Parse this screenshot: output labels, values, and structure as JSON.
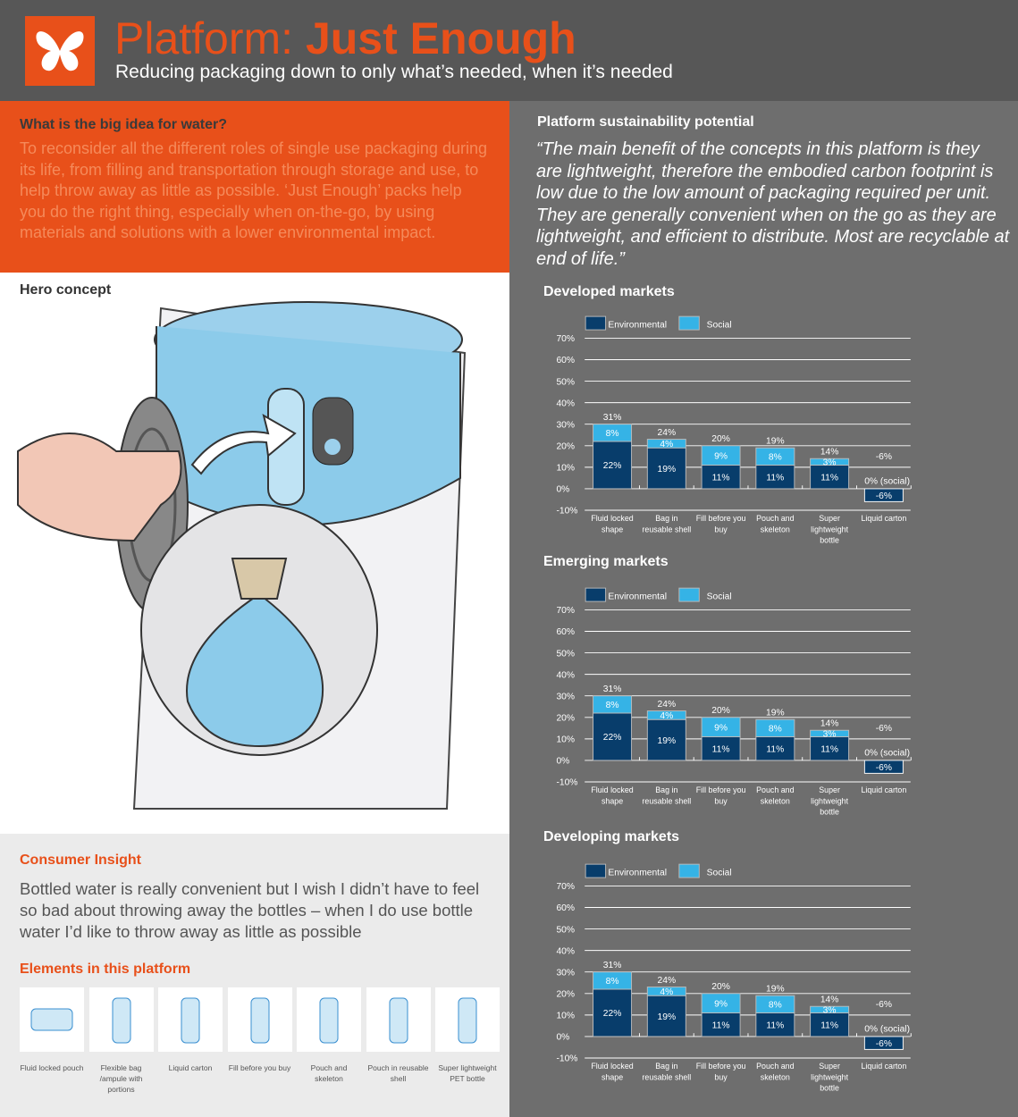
{
  "header": {
    "title_light": "Platform: ",
    "title_bold": "Just Enough",
    "subtitle": "Reducing packaging down to only what’s needed, when it’s needed",
    "logo_icon": "butterfly-icon"
  },
  "big_idea": {
    "heading": "What is the big idea for water?",
    "body": "To reconsider all the different roles of single use packaging during its life, from filling and transportation through storage and use, to help throw away as little as possible. ‘Just Enough’ packs help you do the right thing, especially when on-the-go, by using materials and solutions with a lower environmental impact."
  },
  "hero": {
    "heading": "Hero concept"
  },
  "insight": {
    "heading": "Consumer Insight",
    "body": "Bottled water is really convenient but I wish I didn’t have to feel so bad about throwing away the bottles – when I do use bottle water I’d like to throw away as little as possible",
    "elements_heading": "Elements in this platform",
    "elements": [
      {
        "label": "Fluid locked pouch"
      },
      {
        "label": "Flexible bag /ampule with portions"
      },
      {
        "label": "Liquid carton"
      },
      {
        "label": "Fill before you buy"
      },
      {
        "label": "Pouch and skeleton"
      },
      {
        "label": "Pouch in reusable shell"
      },
      {
        "label": "Super lightweight PET bottle"
      }
    ]
  },
  "right": {
    "heading": "Platform sustainability potential",
    "quote": "“The main benefit of the concepts in this platform is they are lightweight, therefore the embodied carbon footprint is low due to the low amount of packaging required per unit. They are generally convenient when on the go as they are lightweight, and efficient to distribute.  Most are recyclable at end of life.”"
  },
  "colors": {
    "environmental": "#083d6b",
    "social": "#35b3e6",
    "orange": "#e8501a"
  },
  "chart_data": [
    {
      "type": "bar",
      "stacked": true,
      "title": "Developed markets",
      "ylim": [
        -10,
        70
      ],
      "yticks": [
        "70%",
        "60%",
        "50%",
        "40%",
        "30%",
        "20%",
        "10%",
        "0%",
        "-10%"
      ],
      "legend": "top-left",
      "grid": true,
      "categories": [
        "Fluid locked shape",
        "Bag in reusable shell",
        "Fill before you buy",
        "Pouch and skeleton",
        "Super lightweight bottle",
        "Liquid carton"
      ],
      "series": [
        {
          "name": "Environmental",
          "values": [
            22,
            19,
            11,
            11,
            11,
            -6
          ]
        },
        {
          "name": "Social",
          "values": [
            8,
            4,
            9,
            8,
            3,
            0
          ]
        }
      ],
      "totals": [
        "31%",
        "24%",
        "20%",
        "19%",
        "14%",
        "-6%"
      ],
      "annotations": [
        "0% (social)"
      ]
    },
    {
      "type": "bar",
      "stacked": true,
      "title": "Emerging markets",
      "ylim": [
        -10,
        70
      ],
      "yticks": [
        "70%",
        "60%",
        "50%",
        "40%",
        "30%",
        "20%",
        "10%",
        "0%",
        "-10%"
      ],
      "legend": "top-left",
      "grid": true,
      "categories": [
        "Fluid locked shape",
        "Bag in reusable shell",
        "Fill before you buy",
        "Pouch and skeleton",
        "Super lightweight bottle",
        "Liquid carton"
      ],
      "series": [
        {
          "name": "Environmental",
          "values": [
            22,
            19,
            11,
            11,
            11,
            -6
          ]
        },
        {
          "name": "Social",
          "values": [
            8,
            4,
            9,
            8,
            3,
            0
          ]
        }
      ],
      "totals": [
        "31%",
        "24%",
        "20%",
        "19%",
        "14%",
        "-6%"
      ],
      "annotations": [
        "0% (social)"
      ]
    },
    {
      "type": "bar",
      "stacked": true,
      "title": "Developing markets",
      "ylim": [
        -10,
        70
      ],
      "yticks": [
        "70%",
        "60%",
        "50%",
        "40%",
        "30%",
        "20%",
        "10%",
        "0%",
        "-10%"
      ],
      "legend": "top-left",
      "grid": true,
      "categories": [
        "Fluid locked shape",
        "Bag in reusable shell",
        "Fill before you buy",
        "Pouch and skeleton",
        "Super lightweight bottle",
        "Liquid carton"
      ],
      "series": [
        {
          "name": "Environmental",
          "values": [
            22,
            19,
            11,
            11,
            11,
            -6
          ]
        },
        {
          "name": "Social",
          "values": [
            8,
            4,
            9,
            8,
            3,
            0
          ]
        }
      ],
      "totals": [
        "31%",
        "24%",
        "20%",
        "19%",
        "14%",
        "-6%"
      ],
      "annotations": [
        "0% (social)"
      ]
    }
  ]
}
